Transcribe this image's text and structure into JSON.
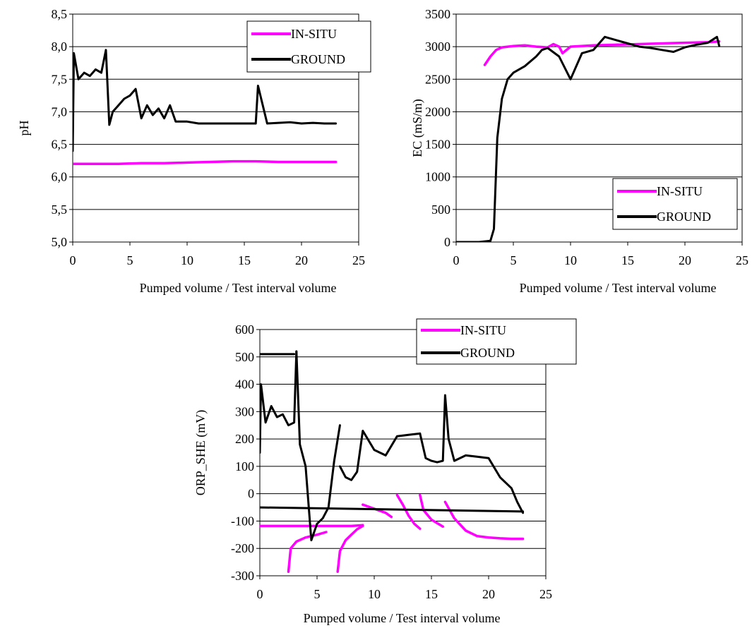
{
  "chart_data": [
    {
      "type": "line",
      "xlabel": "Pumped volume / Test interval volume",
      "ylabel": "pH",
      "xlim": [
        0,
        25
      ],
      "ylim": [
        5.0,
        8.5
      ],
      "x_ticks": [
        0,
        5,
        10,
        15,
        20,
        25
      ],
      "y_tick_labels": [
        "5,0",
        "5,5",
        "6,0",
        "6,5",
        "7,0",
        "7,5",
        "8,0",
        "8,5"
      ],
      "legend": "top-right",
      "series": [
        {
          "name": "IN-SITU",
          "color": "#ff00ff",
          "x": [
            0,
            2,
            4,
            6,
            8,
            10,
            12,
            14,
            16,
            18,
            20,
            22,
            23
          ],
          "y": [
            6.2,
            6.2,
            6.2,
            6.21,
            6.21,
            6.22,
            6.23,
            6.24,
            6.24,
            6.23,
            6.23,
            6.23,
            6.23
          ]
        },
        {
          "name": "GROUND",
          "color": "#000000",
          "x": [
            0,
            0.1,
            0.5,
            1,
            1.5,
            2,
            2.5,
            2.9,
            3.2,
            3.5,
            4,
            4.5,
            5,
            5.5,
            6,
            6.5,
            7,
            7.5,
            8,
            8.5,
            9,
            10,
            11,
            12,
            13,
            14,
            16,
            16.2,
            17,
            18,
            19,
            20,
            21,
            22,
            23
          ],
          "y": [
            6.4,
            7.9,
            7.5,
            7.6,
            7.55,
            7.65,
            7.6,
            7.95,
            6.8,
            7.0,
            7.1,
            7.2,
            7.25,
            7.35,
            6.9,
            7.1,
            6.95,
            7.05,
            6.9,
            7.1,
            6.85,
            6.85,
            6.82,
            6.82,
            6.82,
            6.82,
            6.82,
            7.4,
            6.82,
            6.83,
            6.84,
            6.82,
            6.83,
            6.82,
            6.82
          ]
        }
      ]
    },
    {
      "type": "line",
      "xlabel": "Pumped volume / Test interval volume",
      "ylabel": "EC (mS/m)",
      "xlim": [
        0,
        25
      ],
      "ylim": [
        0,
        3500
      ],
      "x_ticks": [
        0,
        5,
        10,
        15,
        20,
        25
      ],
      "y_ticks": [
        0,
        500,
        1000,
        1500,
        2000,
        2500,
        3000,
        3500
      ],
      "legend": "bottom-right",
      "series": [
        {
          "name": "IN-SITU",
          "color": "#ff00ff",
          "x": [
            2.5,
            3,
            3.5,
            4,
            5,
            6,
            7,
            8,
            8.5,
            9,
            9.3,
            10,
            12,
            14,
            16,
            18,
            20,
            22,
            23
          ],
          "y": [
            2720,
            2850,
            2950,
            2990,
            3010,
            3020,
            3000,
            2990,
            3040,
            3000,
            2900,
            3000,
            3020,
            3030,
            3040,
            3050,
            3060,
            3070,
            3080
          ]
        },
        {
          "name": "GROUND",
          "color": "#000000",
          "x": [
            0,
            2,
            3,
            3.3,
            3.6,
            4,
            4.5,
            5,
            5.5,
            6,
            7,
            7.5,
            8,
            9,
            10,
            11,
            12,
            13,
            14,
            15,
            16,
            17,
            18,
            19,
            20,
            21,
            22,
            22.8,
            23
          ],
          "y": [
            0,
            0,
            20,
            200,
            1600,
            2200,
            2500,
            2600,
            2650,
            2700,
            2850,
            2950,
            2980,
            2850,
            2500,
            2900,
            2950,
            3150,
            3100,
            3050,
            3000,
            2980,
            2950,
            2920,
            2990,
            3030,
            3060,
            3150,
            3010
          ]
        }
      ]
    },
    {
      "type": "line",
      "xlabel": "Pumped volume / Test interval volume",
      "ylabel": "ORP_SHE (mV)",
      "xlim": [
        0,
        25
      ],
      "ylim": [
        -300,
        600
      ],
      "x_ticks": [
        0,
        5,
        10,
        15,
        20,
        25
      ],
      "y_ticks": [
        -300,
        -200,
        -100,
        0,
        100,
        200,
        300,
        400,
        500,
        600
      ],
      "legend": "top-right",
      "series": [
        {
          "name": "IN-SITU",
          "color": "#ff00ff",
          "segments": [
            {
              "x": [
                0,
                3,
                6,
                8,
                9
              ],
              "y": [
                -118,
                -118,
                -118,
                -118,
                -115
              ]
            },
            {
              "x": [
                2.5,
                2.7,
                3.2,
                4,
                5,
                5.8
              ],
              "y": [
                -285,
                -200,
                -175,
                -160,
                -150,
                -140
              ]
            },
            {
              "x": [
                6.8,
                7,
                7.5,
                8,
                8.5,
                9
              ],
              "y": [
                -285,
                -210,
                -170,
                -150,
                -130,
                -118
              ]
            },
            {
              "x": [
                9,
                10,
                11,
                11.5
              ],
              "y": [
                -40,
                -55,
                -70,
                -85
              ]
            },
            {
              "x": [
                12,
                12.5,
                13,
                13.5,
                14
              ],
              "y": [
                -5,
                -40,
                -80,
                -110,
                -128
              ]
            },
            {
              "x": [
                14,
                14.3,
                15,
                16
              ],
              "y": [
                -5,
                -60,
                -95,
                -120
              ]
            },
            {
              "x": [
                16.2,
                17,
                18,
                19,
                20,
                21,
                22,
                23
              ],
              "y": [
                -30,
                -90,
                -135,
                -155,
                -160,
                -163,
                -165,
                -165
              ]
            }
          ]
        },
        {
          "name": "GROUND",
          "color": "#000000",
          "segments": [
            {
              "x": [
                0,
                0.1,
                0.5,
                1,
                1.5,
                2,
                2.5,
                3,
                3.2
              ],
              "y": [
                150,
                400,
                260,
                320,
                280,
                290,
                250,
                260,
                520
              ]
            },
            {
              "x": [
                3.2,
                3.5,
                4,
                4.5,
                5,
                5.5,
                6,
                6.5,
                7
              ],
              "y": [
                520,
                180,
                100,
                -170,
                -110,
                -90,
                -50,
                120,
                250
              ]
            },
            {
              "x": [
                7,
                7.5,
                8,
                8.5,
                9,
                10,
                11,
                12,
                13,
                14
              ],
              "y": [
                100,
                60,
                50,
                80,
                230,
                160,
                140,
                210,
                215,
                220
              ]
            },
            {
              "x": [
                14,
                14.5,
                15,
                15.5,
                16,
                16.2,
                16.5,
                17,
                18,
                19,
                20,
                21,
                22,
                22.5,
                23
              ],
              "y": [
                220,
                130,
                120,
                115,
                120,
                360,
                200,
                120,
                140,
                135,
                130,
                60,
                20,
                -30,
                -70
              ]
            },
            {
              "x": [
                0,
                3
              ],
              "y": [
                510,
                510
              ]
            },
            {
              "x": [
                0,
                23
              ],
              "y": [
                -50,
                -65
              ]
            }
          ]
        }
      ]
    }
  ]
}
